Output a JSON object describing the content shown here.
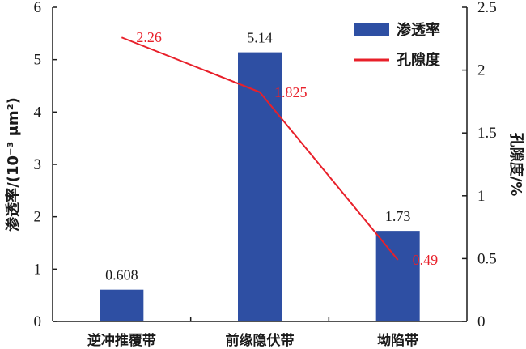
{
  "chart_data": {
    "type": "bar+line",
    "categories": [
      "逆冲推覆带",
      "前缘隐伏带",
      "坳陷带"
    ],
    "series": [
      {
        "name": "渗透率",
        "type": "bar",
        "axis": "left",
        "values": [
          0.608,
          5.14,
          1.73
        ],
        "labels": [
          "0.608",
          "5.14",
          "1.73"
        ],
        "color": "#2e4fa3"
      },
      {
        "name": "孔隙度",
        "type": "line",
        "axis": "right",
        "values": [
          2.26,
          1.825,
          0.49
        ],
        "labels": [
          "2.26",
          "1.825",
          "0.49"
        ],
        "color": "#e8202a"
      }
    ],
    "ylabel_left": "渗透率/(10⁻³ μm²)",
    "ylabel_right": "孔隙度/%",
    "ylim_left": [
      0,
      6
    ],
    "ylim_right": [
      0,
      2.5
    ],
    "yticks_left": [
      "0",
      "1",
      "2",
      "3",
      "4",
      "5",
      "6"
    ],
    "yticks_right": [
      "0",
      "0.5",
      "1",
      "1.5",
      "2",
      "2.5"
    ],
    "legend_position": "top-right",
    "grid": false
  }
}
